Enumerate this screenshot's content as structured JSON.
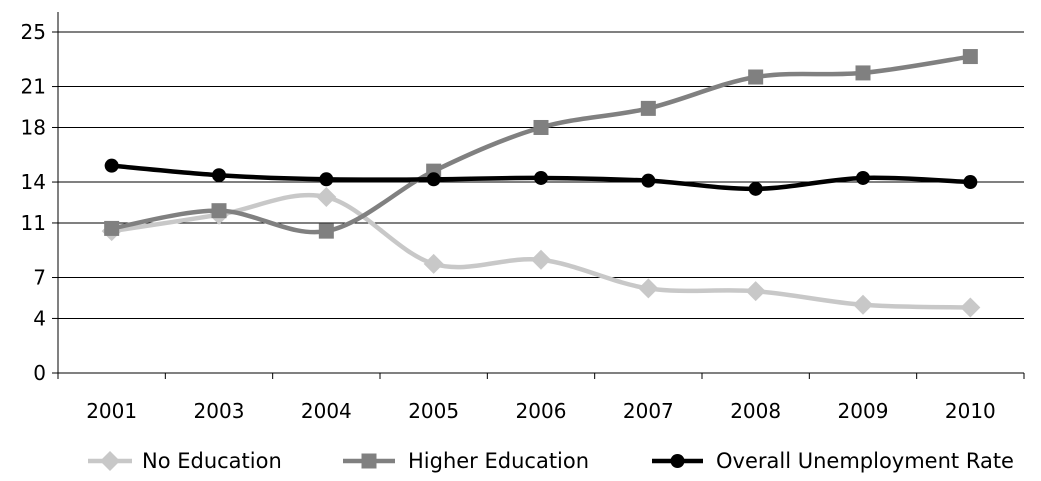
{
  "chart_data": {
    "type": "line",
    "title": "",
    "xlabel": "",
    "ylabel": "",
    "categories": [
      "2001",
      "2003",
      "2004",
      "2005",
      "2006",
      "2007",
      "2008",
      "2009",
      "2010"
    ],
    "ylim": [
      0,
      25
    ],
    "yticks": [
      0,
      4,
      7,
      11,
      14,
      18,
      21,
      25
    ],
    "grid": true,
    "legend_position": "bottom",
    "series": [
      {
        "name": "No Education",
        "color": "#c8c8c8",
        "marker": "diamond",
        "values": [
          10.4,
          11.6,
          12.9,
          8.0,
          8.3,
          6.2,
          6.0,
          5.0,
          4.8
        ]
      },
      {
        "name": "Higher Education",
        "color": "#808080",
        "marker": "square",
        "values": [
          10.6,
          11.9,
          10.4,
          14.8,
          18.0,
          19.4,
          21.7,
          22.0,
          23.2
        ]
      },
      {
        "name": "Overall Unemployment Rate",
        "color": "#000000",
        "marker": "circle",
        "values": [
          15.2,
          14.5,
          14.2,
          14.2,
          14.3,
          14.1,
          13.5,
          14.3,
          14.0
        ]
      }
    ]
  }
}
